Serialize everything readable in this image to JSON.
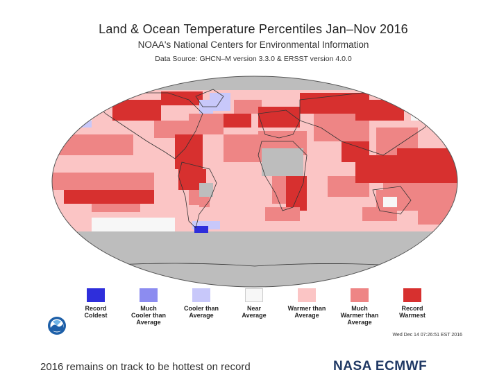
{
  "map": {
    "title": "Land & Ocean Temperature Percentiles Jan–Nov 2016",
    "subtitle": "NOAA's National Centers for Environmental Information",
    "source": "Data Source: GHCN–M version 3.3.0 & ERSST version 4.0.0",
    "timestamp": "Wed Dec 14 07:26:51 EST 2016",
    "projection": "robinson",
    "colors": {
      "record_warmest": "#d7302f",
      "much_warmer": "#ee8585",
      "warmer": "#fbc5c5",
      "near": "#f7f7f7",
      "cooler": "#c8c8fa",
      "much_cooler": "#8c8cf0",
      "record_coldest": "#2e2edb",
      "no_data": "#bdbdbd"
    },
    "legend": [
      {
        "label": "Record\nColdest",
        "color": "#2e2edb"
      },
      {
        "label": "Much\nCooler than\nAverage",
        "color": "#8c8cf0"
      },
      {
        "label": "Cooler than\nAverage",
        "color": "#c8c8fa"
      },
      {
        "label": "Near\nAverage",
        "color": "#f7f7f7"
      },
      {
        "label": "Warmer than\nAverage",
        "color": "#fbc5c5"
      },
      {
        "label": "Much\nWarmer than\nAverage",
        "color": "#ee8585"
      },
      {
        "label": "Record\nWarmest",
        "color": "#d7302f"
      }
    ]
  },
  "caption": "2016 remains on track to be hottest on record",
  "credit": "NASA ECMWF",
  "logo": {
    "name": "noaa-logo-icon"
  }
}
